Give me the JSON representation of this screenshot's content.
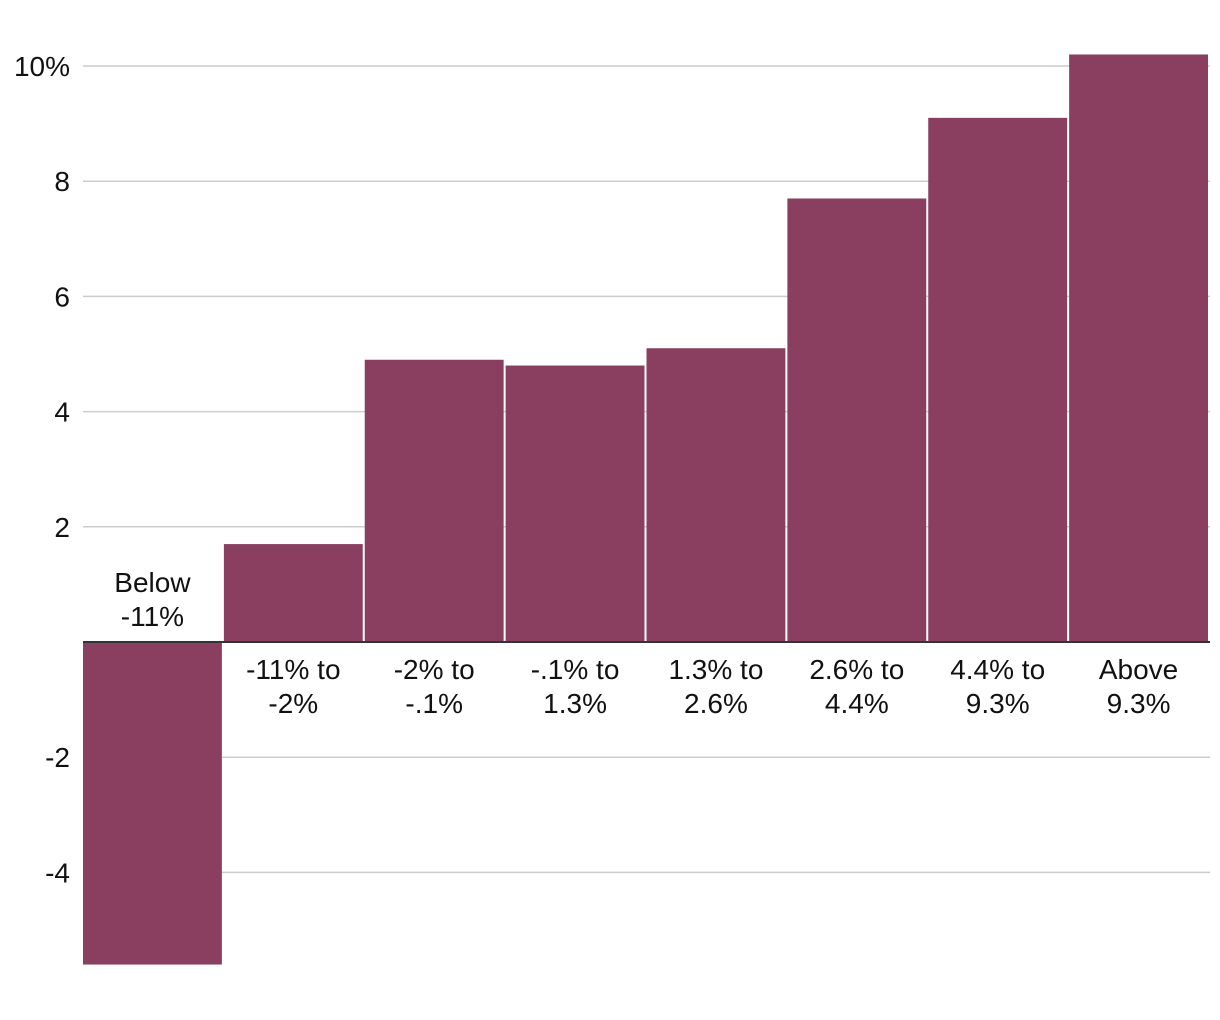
{
  "chart_data": {
    "type": "bar",
    "title": "",
    "xlabel": "",
    "ylabel": "",
    "categories": [
      [
        "Below",
        "-11%"
      ],
      [
        "-11% to",
        "-2%"
      ],
      [
        "-2% to",
        "-.1%"
      ],
      [
        "-.1% to",
        "1.3%"
      ],
      [
        "1.3% to",
        "2.6%"
      ],
      [
        "2.6% to",
        "4.4%"
      ],
      [
        "4.4% to",
        "9.3%"
      ],
      [
        "Above",
        "9.3%"
      ]
    ],
    "values": [
      -5.6,
      1.7,
      4.9,
      4.8,
      5.1,
      7.7,
      9.1,
      10.2
    ],
    "ylim": [
      -5.6,
      10.2
    ],
    "yticks": [
      {
        "value": 10,
        "label": "10%"
      },
      {
        "value": 8,
        "label": "8"
      },
      {
        "value": 6,
        "label": "6"
      },
      {
        "value": 4,
        "label": "4"
      },
      {
        "value": 2,
        "label": "2"
      },
      {
        "value": -2,
        "label": "-2"
      },
      {
        "value": -4,
        "label": "-4"
      }
    ],
    "grid": true,
    "colors": {
      "bar": "#8a3f60",
      "grid": "#cccccc",
      "zero_line": "#333333"
    }
  }
}
